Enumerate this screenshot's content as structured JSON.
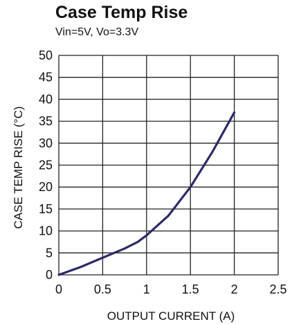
{
  "chart_data": {
    "type": "line",
    "title": "Case Temp Rise",
    "subtitle": "Vin=5V, Vo=3.3V",
    "xlabel": "OUTPUT CURRENT (A)",
    "ylabel": "CASE TEMP RISE (°C)",
    "xlim": [
      0,
      2.5
    ],
    "ylim": [
      0,
      50
    ],
    "x_ticks": [
      "0",
      "0.5",
      "1",
      "1.5",
      "2",
      "2.5"
    ],
    "y_ticks": [
      "0",
      "5",
      "10",
      "15",
      "20",
      "25",
      "30",
      "35",
      "40",
      "45",
      "50"
    ],
    "grid": true,
    "series": [
      {
        "color": "#2b2a66",
        "x": [
          0,
          0.25,
          0.5,
          0.75,
          0.9,
          1.0,
          1.25,
          1.5,
          1.75,
          2.0
        ],
        "y": [
          0,
          1.8,
          3.9,
          6.0,
          7.5,
          9.0,
          13.5,
          20.0,
          28.0,
          37.0
        ]
      }
    ]
  }
}
